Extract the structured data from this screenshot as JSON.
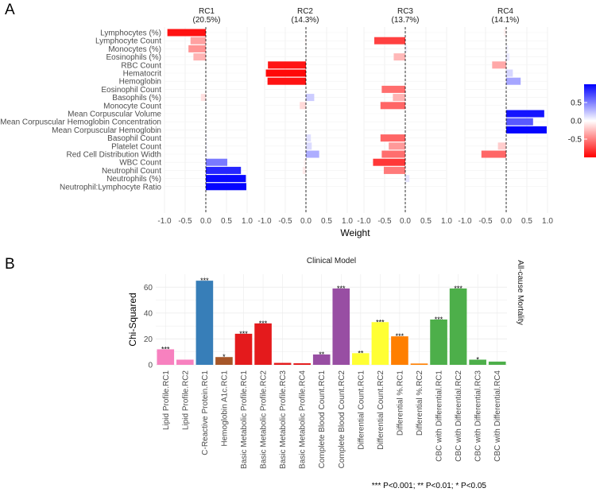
{
  "panel_a": {
    "letter": "A",
    "x_title": "Weight",
    "x_ticks": [
      "-1.0",
      "-0.5",
      "0.0",
      "0.5",
      "1.0"
    ],
    "legend_ticks": [
      "0.5",
      "0.0",
      "-0.5"
    ],
    "legend_colors": {
      "low": "#ff0000",
      "mid": "#ffffff",
      "high": "#0000ff"
    },
    "facets": [
      {
        "name": "RC1",
        "pct": "(20.5%)"
      },
      {
        "name": "RC2",
        "pct": "(14.3%)"
      },
      {
        "name": "RC3",
        "pct": "(13.7%)"
      },
      {
        "name": "RC4",
        "pct": "(14.1%)"
      }
    ],
    "row_labels": [
      "Lymphocytes (%)",
      "Lymphocyte Count",
      "Monocytes (%)",
      "Eosinophils (%)",
      "RBC Count",
      "Hematocrit",
      "Hemoglobin",
      "Eosinophil Count",
      "Basophils (%)",
      "Monocyte Count",
      "Mean Corpuscular Volume",
      "Mean Corpuscular Hemoglobin Concentration",
      "Mean Corpuscular Hemoglobin",
      "Basophil Count",
      "Platelet Count",
      "Red Cell Distribution Width",
      "WBC Count",
      "Neutrophil Count",
      "Neutrophils (%)",
      "Neutrophil:Lymphocyte Ratio"
    ]
  },
  "panel_b": {
    "letter": "B",
    "title": "Clinical Model",
    "y_title": "Chi-Squared",
    "y_ticks": [
      "0",
      "20",
      "40",
      "60"
    ],
    "strip_label": "All-cause Mortality",
    "footnote": "*** P<0.001; ** P<0.01; * P<0.05"
  },
  "chart_data": [
    {
      "type": "bar",
      "orientation": "horizontal",
      "title": "",
      "xlabel": "Weight",
      "xlim": [
        -1.0,
        1.0
      ],
      "categories": [
        "Lymphocytes (%)",
        "Lymphocyte Count",
        "Monocytes (%)",
        "Eosinophils (%)",
        "RBC Count",
        "Hematocrit",
        "Hemoglobin",
        "Eosinophil Count",
        "Basophils (%)",
        "Monocyte Count",
        "Mean Corpuscular Volume",
        "Mean Corpuscular Hemoglobin Concentration",
        "Mean Corpuscular Hemoglobin",
        "Basophil Count",
        "Platelet Count",
        "Red Cell Distribution Width",
        "WBC Count",
        "Neutrophil Count",
        "Neutrophils (%)",
        "Neutrophil:Lymphocyte Ratio"
      ],
      "series": [
        {
          "name": "RC1",
          "values": [
            -0.93,
            -0.37,
            -0.42,
            -0.3,
            0,
            0,
            0,
            0,
            -0.12,
            0.03,
            0,
            0,
            0,
            0.03,
            0.04,
            0.05,
            0.52,
            0.85,
            0.97,
            0.98
          ]
        },
        {
          "name": "RC2",
          "values": [
            0,
            -0.03,
            0,
            0,
            -0.92,
            -0.97,
            -0.93,
            0,
            0.2,
            -0.15,
            0,
            0,
            0,
            0.12,
            0.14,
            0.32,
            -0.05,
            -0.08,
            0,
            0
          ]
        },
        {
          "name": "RC3",
          "values": [
            0,
            -0.75,
            0.05,
            -0.28,
            0,
            0,
            0,
            -0.57,
            -0.3,
            -0.6,
            0,
            0,
            0,
            -0.6,
            -0.4,
            -0.57,
            -0.78,
            -0.52,
            0.1,
            0
          ]
        },
        {
          "name": "RC4",
          "values": [
            -0.06,
            0,
            0.05,
            0.08,
            -0.34,
            0.16,
            0.35,
            0,
            0,
            0,
            0.92,
            0.65,
            0.98,
            0,
            -0.2,
            -0.6,
            0,
            0,
            0,
            0
          ]
        }
      ],
      "legend": {
        "range": [
          -1,
          1
        ],
        "ticks": [
          0.5,
          0.0,
          -0.5
        ],
        "placement": "right"
      }
    },
    {
      "type": "bar",
      "title": "Clinical Model",
      "xlabel": "",
      "ylabel": "Chi-Squared",
      "ylim": [
        0,
        70
      ],
      "grid": true,
      "facet_label": "All-cause Mortality",
      "categories": [
        "Lipid Profile.RC1",
        "Lipid Profile.RC2",
        "C-Reactive Protein.RC1",
        "Hemoglobin A1c.RC1",
        "Basic Metabolic Profile.RC1",
        "Basic Metabolic Profile.RC2",
        "Basic Metabolic Profile.RC3",
        "Basic Metabolic Profile.RC4",
        "Complete Blood Count.RC1",
        "Complete Blood Count.RC2",
        "Differential Count.RC1",
        "Differential Count.RC2",
        "Differential %.RC1",
        "Differential %.RC2",
        "CBC with Differential.RC1",
        "CBC with Differential.RC2",
        "CBC with Differential.RC3",
        "CBC with Differential.RC4"
      ],
      "values": [
        12,
        4,
        65,
        6,
        24,
        32,
        1.5,
        1.2,
        8,
        59,
        9,
        33,
        22,
        1,
        35,
        59,
        4,
        2.5
      ],
      "significance": [
        "***",
        "",
        "***",
        "*",
        "***",
        "***",
        "",
        "",
        "**",
        "***",
        "**",
        "***",
        "***",
        "",
        "***",
        "***",
        "*",
        ""
      ],
      "colors": [
        "#f781bf",
        "#f781bf",
        "#377eb8",
        "#a65628",
        "#e41a1c",
        "#e41a1c",
        "#e41a1c",
        "#e41a1c",
        "#984ea3",
        "#984ea3",
        "#ffff33",
        "#ffff33",
        "#ff7f00",
        "#ff7f00",
        "#4daf4a",
        "#4daf4a",
        "#4daf4a",
        "#4daf4a"
      ]
    }
  ]
}
